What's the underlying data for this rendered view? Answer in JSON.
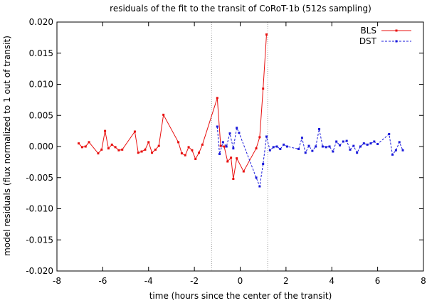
{
  "chart_data": {
    "type": "line",
    "title": "residuals of the fit to the transit of CoRoT-1b (512s sampling)",
    "xlabel": "time (hours since the center of the transit)",
    "ylabel": "model residuals (flux normalized to 1 out of transit)",
    "xlim": [
      -8,
      8
    ],
    "ylim": [
      -0.02,
      0.02
    ],
    "xticks": [
      -8,
      -6,
      -4,
      -2,
      0,
      2,
      4,
      6,
      8
    ],
    "yticks": [
      -0.02,
      -0.015,
      -0.01,
      -0.005,
      0,
      0.005,
      0.01,
      0.015,
      0.02
    ],
    "xtick_labels": [
      "-8",
      "-6",
      "-4",
      "-2",
      "0",
      "2",
      "4",
      "6",
      "8"
    ],
    "ytick_labels": [
      "-0.020",
      "-0.015",
      "-0.010",
      "-0.005",
      "0.000",
      "0.005",
      "0.010",
      "0.015",
      "0.020"
    ],
    "vlines": [
      -1.25,
      1.2
    ],
    "legend": {
      "position": "top-right"
    },
    "series": [
      {
        "name": "BLS",
        "color": "#e8100f",
        "dash": "solid",
        "x": [
          -7.05,
          -6.9,
          -6.75,
          -6.6,
          -6.2,
          -6.05,
          -5.9,
          -5.75,
          -5.6,
          -5.45,
          -5.3,
          -5.15,
          -4.6,
          -4.45,
          -4.3,
          -4.15,
          -4.0,
          -3.85,
          -3.7,
          -3.55,
          -3.35,
          -2.7,
          -2.55,
          -2.4,
          -2.25,
          -2.1,
          -1.95,
          -1.8,
          -1.65,
          -1.0,
          -0.85,
          -0.7,
          -0.55,
          -0.4,
          -0.3,
          -0.15,
          0.15,
          0.7,
          0.85,
          1.0,
          1.15
        ],
        "y": [
          0.0005,
          -0.0001,
          0.0,
          0.0007,
          -0.0011,
          -0.0005,
          0.0025,
          -0.0003,
          0.0003,
          -0.0001,
          -0.0006,
          -0.0005,
          0.0024,
          -0.001,
          -0.0008,
          -0.0005,
          0.0007,
          -0.001,
          -0.0005,
          0.0001,
          0.0051,
          0.0007,
          -0.0011,
          -0.0014,
          -0.0001,
          -0.0006,
          -0.002,
          -0.001,
          0.0003,
          0.0078,
          0.0001,
          0.0,
          -0.0024,
          -0.0018,
          -0.0052,
          -0.0019,
          -0.004,
          -0.0003,
          0.0015,
          0.0093,
          0.018
        ]
      },
      {
        "name": "DST",
        "color": "#1a1adb",
        "dash": "dashed",
        "x": [
          -1.0,
          -0.9,
          -0.75,
          -0.6,
          -0.45,
          -0.3,
          -0.15,
          -0.05,
          0.7,
          0.85,
          1.0,
          1.15,
          1.3,
          1.45,
          1.6,
          1.75,
          1.9,
          2.05,
          2.55,
          2.7,
          2.85,
          3.0,
          3.15,
          3.3,
          3.45,
          3.6,
          3.75,
          3.9,
          4.05,
          4.2,
          4.35,
          4.5,
          4.65,
          4.8,
          4.95,
          5.1,
          5.25,
          5.4,
          5.55,
          5.7,
          5.85,
          6.0,
          6.5,
          6.65,
          6.8,
          6.95,
          7.1
        ],
        "y": [
          0.0032,
          -0.0012,
          0.0007,
          0.0,
          0.0021,
          -0.0003,
          0.003,
          0.0022,
          -0.005,
          -0.0064,
          -0.0028,
          0.0016,
          -0.0006,
          -0.0001,
          0.0,
          -0.0004,
          0.0003,
          0.0,
          -0.0004,
          0.0014,
          -0.001,
          0.0001,
          -0.0007,
          0.0,
          0.0028,
          0.0,
          -0.0001,
          0.0,
          -0.0008,
          0.0008,
          0.0002,
          0.0008,
          0.0009,
          -0.0005,
          0.0001,
          -0.001,
          0.0,
          0.0005,
          0.0003,
          0.0005,
          0.0008,
          0.0004,
          0.002,
          -0.0013,
          -0.0006,
          0.0007,
          -0.0006
        ]
      }
    ]
  }
}
